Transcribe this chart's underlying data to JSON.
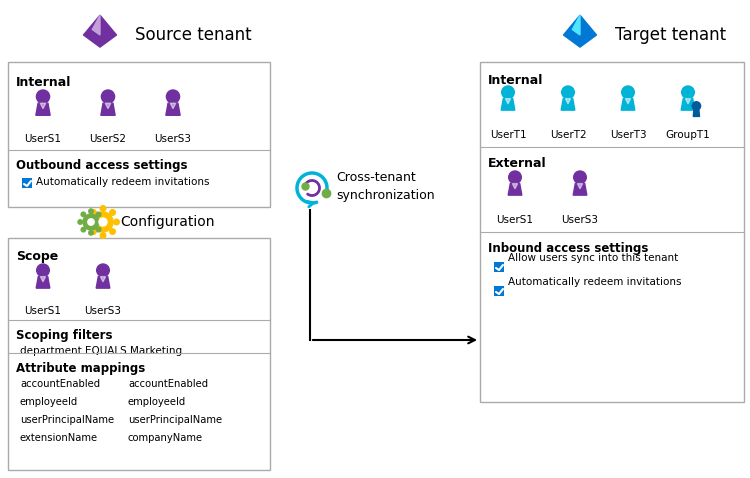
{
  "bg_color": "#ffffff",
  "source_tenant_label": "Source tenant",
  "target_tenant_label": "Target tenant",
  "cross_tenant_label": "Cross-tenant\nsynchronization",
  "purple_user_color": "#7030a0",
  "cyan_user_color": "#00b4d8",
  "cyan_user_color2": "#005a9e",
  "source_internal_label": "Internal",
  "source_internal_users": [
    "UserS1",
    "UserS2",
    "UserS3"
  ],
  "source_outbound_label": "Outbound access settings",
  "source_outbound_items": [
    "Automatically redeem invitations"
  ],
  "config_label": "Configuration",
  "scope_label": "Scope",
  "scope_users": [
    "UserS1",
    "UserS3"
  ],
  "scoping_filters_label": "Scoping filters",
  "scoping_filters_items": [
    "department EQUALS Marketing"
  ],
  "attribute_mappings_label": "Attribute mappings",
  "attribute_mappings_left": [
    "accountEnabled",
    "employeeId",
    "userPrincipalName",
    "extensionName"
  ],
  "attribute_mappings_right": [
    "accountEnabled",
    "employeeId",
    "userPrincipalName",
    "companyName"
  ],
  "target_internal_label": "Internal",
  "target_internal_users": [
    "UserT1",
    "UserT2",
    "UserT3",
    "GroupT1"
  ],
  "target_external_label": "External",
  "target_external_users": [
    "UserS1",
    "UserS3"
  ],
  "target_inbound_label": "Inbound access settings",
  "target_inbound_items": [
    "Allow users sync into this tenant",
    "Automatically redeem invitations"
  ],
  "checkbox_color": "#0078d4",
  "border_color": "#aaaaaa",
  "text_color": "#000000",
  "gear_color1": "#70ad47",
  "gear_color2": "#ffc000",
  "sync_outer_color": "#00b4d8",
  "sync_inner_color": "#7030a0",
  "sync_dot_color": "#70ad47"
}
